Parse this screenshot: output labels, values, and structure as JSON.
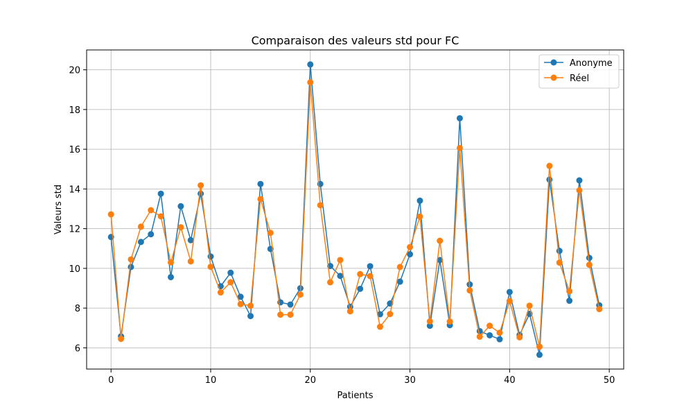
{
  "chart_data": {
    "type": "line",
    "title": "Comparaison des valeurs std pour FC",
    "xlabel": "Patients",
    "ylabel": "Valeurs std",
    "xlim": [
      -2.45,
      51.45
    ],
    "ylim": [
      4.93,
      21.0
    ],
    "x_ticks": [
      0,
      10,
      20,
      30,
      40,
      50
    ],
    "y_ticks": [
      6,
      8,
      10,
      12,
      14,
      16,
      18,
      20
    ],
    "grid": true,
    "legend_position": "top-right",
    "x": [
      0,
      1,
      2,
      3,
      4,
      5,
      6,
      7,
      8,
      9,
      10,
      11,
      12,
      13,
      14,
      15,
      16,
      17,
      18,
      19,
      20,
      21,
      22,
      23,
      24,
      25,
      26,
      27,
      28,
      29,
      30,
      31,
      32,
      33,
      34,
      35,
      36,
      37,
      38,
      39,
      40,
      41,
      42,
      43,
      44,
      45,
      46,
      47,
      48,
      49
    ],
    "series": [
      {
        "name": "Anonyme",
        "color": "#1f77b4",
        "values": [
          11.58,
          6.58,
          10.07,
          11.33,
          11.72,
          13.76,
          9.56,
          13.13,
          11.42,
          13.76,
          10.6,
          9.1,
          9.78,
          8.57,
          7.6,
          14.25,
          10.98,
          8.29,
          8.18,
          9.0,
          20.27,
          14.25,
          10.12,
          9.62,
          8.07,
          8.97,
          10.11,
          7.69,
          8.23,
          9.33,
          10.71,
          13.41,
          7.11,
          10.42,
          7.14,
          17.56,
          9.19,
          6.84,
          6.63,
          6.43,
          8.81,
          6.65,
          7.71,
          5.65,
          14.47,
          10.88,
          8.37,
          14.43,
          10.53,
          8.14
        ]
      },
      {
        "name": "Réel",
        "color": "#ff7f0e",
        "values": [
          12.72,
          6.45,
          10.45,
          12.1,
          12.93,
          12.62,
          10.3,
          12.07,
          10.35,
          14.18,
          10.08,
          8.79,
          9.3,
          8.2,
          8.12,
          13.49,
          11.79,
          7.67,
          7.67,
          8.68,
          19.37,
          13.18,
          9.3,
          10.42,
          7.84,
          9.71,
          9.61,
          7.06,
          7.7,
          10.07,
          11.07,
          12.61,
          7.33,
          11.39,
          7.32,
          16.06,
          8.89,
          6.56,
          7.11,
          6.76,
          8.35,
          6.53,
          8.12,
          6.06,
          15.16,
          10.29,
          8.85,
          13.93,
          10.18,
          7.95
        ]
      }
    ]
  }
}
